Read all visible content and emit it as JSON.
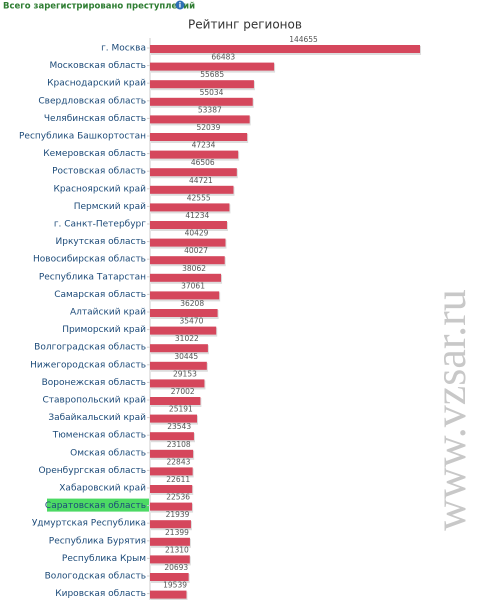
{
  "header": "Всего зарегистрировано преступлений",
  "watermark": "www.vzsar.ru",
  "chart_data": {
    "type": "hbar",
    "title": "Рейтинг регионов",
    "color": "#d5475c",
    "highlight": {
      "category": "Саратовская область",
      "color": "#4cd964"
    },
    "xlim": [
      0,
      150000
    ],
    "categories": [
      "г. Москва",
      "Московская область",
      "Краснодарский край",
      "Свердловская область",
      "Челябинская область",
      "Республика Башкортостан",
      "Кемеровская область",
      "Ростовская область",
      "Красноярский край",
      "Пермский край",
      "г. Санкт-Петербург",
      "Иркутская область",
      "Новосибирская область",
      "Республика Татарстан",
      "Самарская область",
      "Алтайский край",
      "Приморский край",
      "Волгоградская область",
      "Нижегородская область",
      "Воронежская область",
      "Ставропольский край",
      "Забайкальский край",
      "Тюменская область",
      "Омская область",
      "Оренбургская область",
      "Хабаровский край",
      "Саратовская область",
      "Удмуртская Республика",
      "Республика Бурятия",
      "Республика Крым",
      "Вологодская область",
      "Кировская область"
    ],
    "values": [
      144655,
      66483,
      55685,
      55034,
      53387,
      52039,
      47234,
      46506,
      44721,
      42555,
      41234,
      40429,
      40027,
      38062,
      37061,
      36208,
      35470,
      31022,
      30445,
      29153,
      27002,
      25191,
      23543,
      23108,
      22843,
      22611,
      22536,
      21939,
      21399,
      21310,
      20693,
      19539
    ]
  }
}
